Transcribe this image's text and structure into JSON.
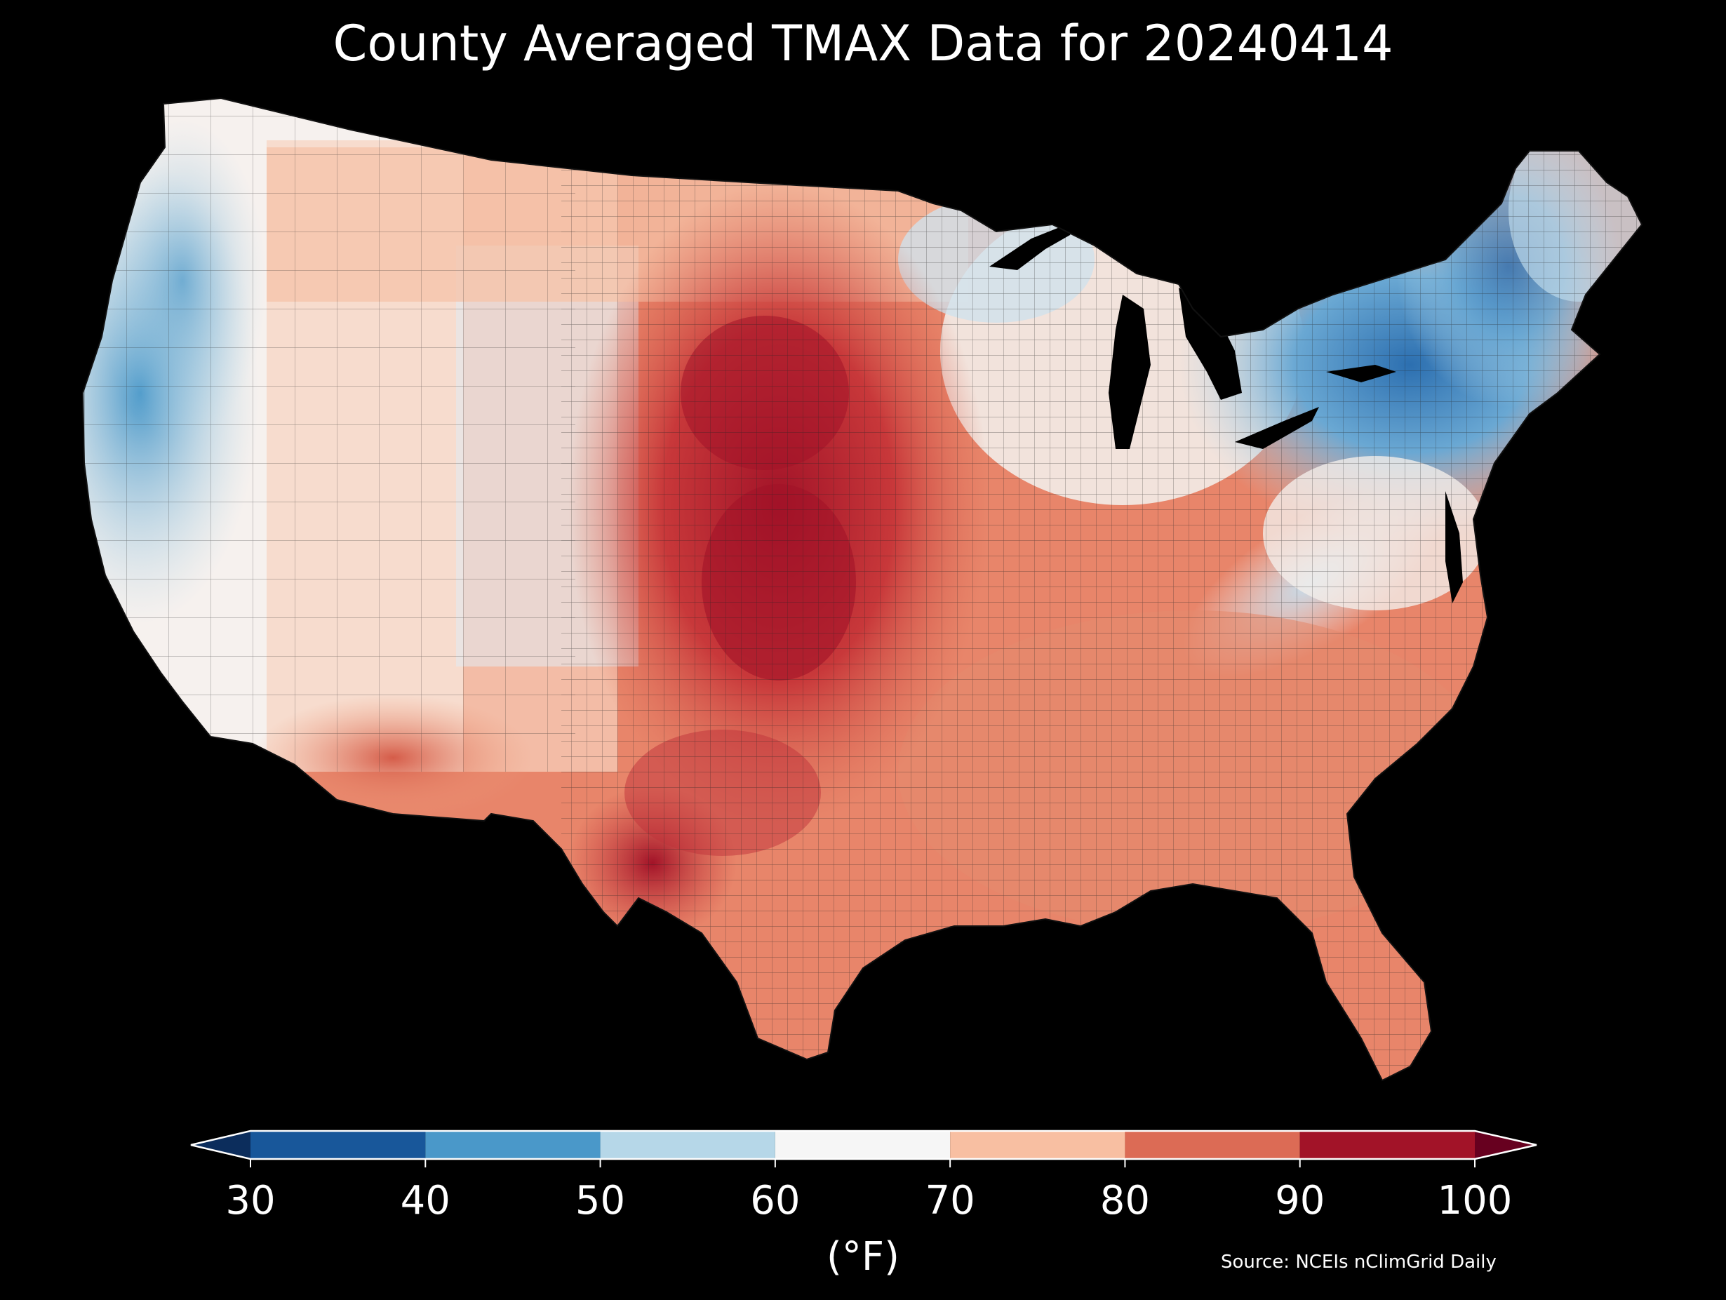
{
  "title": "County Averaged TMAX Data for 20240414",
  "map": {
    "region": "Contiguous United States, county level",
    "variable": "TMAX",
    "background": "#000000",
    "county_border_color": "#222222",
    "regions": [
      {
        "name": "Pacific coast / California coast",
        "value_range": "40-60"
      },
      {
        "name": "Northeast / New England / NY",
        "value_range": "30-60"
      },
      {
        "name": "Great Lakes / upper Michigan",
        "value_range": "50-70"
      },
      {
        "name": "Appalachians",
        "value_range": "50-70"
      },
      {
        "name": "Intermountain West",
        "value_range": "60-80"
      },
      {
        "name": "Desert Southwest",
        "value_range": "80-90"
      },
      {
        "name": "Great Plains / Kansas / Oklahoma",
        "value_range": "90-100"
      },
      {
        "name": "Southwest Texas",
        "value_range": "90-100"
      },
      {
        "name": "Southeast / Gulf Coast / Florida",
        "value_range": "80-90"
      }
    ]
  },
  "colorbar": {
    "ticks": [
      "30",
      "40",
      "50",
      "60",
      "70",
      "80",
      "90",
      "100"
    ],
    "bins": [
      {
        "from": 30,
        "to": 40,
        "color": "#18579a"
      },
      {
        "from": 40,
        "to": 50,
        "color": "#4a98c9"
      },
      {
        "from": 50,
        "to": 60,
        "color": "#b6d7e8"
      },
      {
        "from": 60,
        "to": 70,
        "color": "#f6f6f6"
      },
      {
        "from": 70,
        "to": 80,
        "color": "#f8bfa2"
      },
      {
        "from": 80,
        "to": 90,
        "color": "#dc6b55"
      },
      {
        "from": 90,
        "to": 100,
        "color": "#a21328"
      }
    ],
    "under_color": "#0c2d5c",
    "over_color": "#67001f",
    "outline_color": "#ffffff",
    "unit": "(°F)"
  },
  "source": "Source: NCEIs nClimGrid Daily"
}
